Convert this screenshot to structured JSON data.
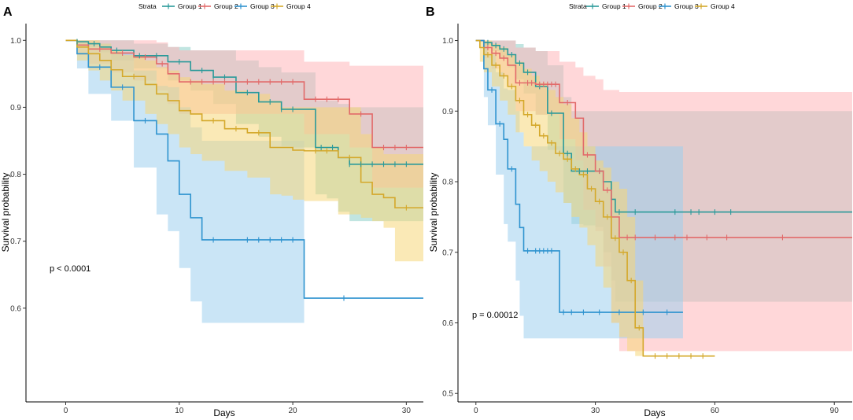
{
  "figure": {
    "legend_title": "Strata",
    "group_names": [
      "Group 1",
      "Group 2",
      "Group 3",
      "Group 4"
    ],
    "colors": [
      "#2A9A9A",
      "#E26A6A",
      "#2E93CF",
      "#D4A82A"
    ],
    "band_colors": [
      "#8ECFC9",
      "#FFB6B9",
      "#9ED0EE",
      "#F5D77A"
    ]
  },
  "chart_data": [
    {
      "type": "line",
      "panel_label": "A",
      "title": "",
      "xlabel": "Days",
      "ylabel": "Survival probability",
      "xlim": [
        -3.5,
        31.5
      ],
      "ylim": [
        0.46,
        1.025
      ],
      "xticks": [
        0,
        10,
        20,
        30
      ],
      "yticks": [
        0.6,
        0.7,
        0.8,
        0.9,
        1.0
      ],
      "ytick_labels": [
        "0.6",
        "0.7",
        "0.8",
        "0.9",
        "1.0"
      ],
      "annotation": "p < 0.0001",
      "series": [
        {
          "name": "Group 1",
          "x": [
            0,
            1,
            2,
            3,
            4,
            6,
            9,
            11,
            13,
            15,
            17,
            19,
            20,
            22,
            23,
            24,
            25,
            26,
            27,
            28,
            29,
            30,
            31.5
          ],
          "y": [
            1.0,
            0.998,
            0.995,
            0.99,
            0.985,
            0.977,
            0.968,
            0.955,
            0.945,
            0.922,
            0.908,
            0.897,
            0.897,
            0.84,
            0.84,
            0.825,
            0.815,
            0.815,
            0.815,
            0.815,
            0.815,
            0.815,
            0.815
          ],
          "lower": [
            1.0,
            0.995,
            0.99,
            0.982,
            0.97,
            0.958,
            0.94,
            0.925,
            0.905,
            0.875,
            0.856,
            0.842,
            0.84,
            0.77,
            0.764,
            0.744,
            0.73,
            0.73,
            0.73,
            0.73,
            0.73,
            0.73,
            0.73
          ],
          "upper": [
            1.0,
            1.0,
            1.0,
            1.0,
            1.0,
            0.995,
            0.99,
            0.985,
            0.985,
            0.97,
            0.96,
            0.952,
            0.952,
            0.91,
            0.91,
            0.905,
            0.9,
            0.9,
            0.9,
            0.9,
            0.9,
            0.9,
            0.9
          ],
          "censor_x": [
            1,
            2.5,
            4.5,
            6.5,
            8,
            10,
            12,
            13,
            14,
            16,
            18,
            19,
            20,
            22.5,
            23.5,
            25,
            26,
            27,
            28,
            29,
            30
          ]
        },
        {
          "name": "Group 2",
          "x": [
            0,
            1,
            2,
            4,
            6,
            8,
            9,
            10,
            15,
            21,
            25,
            27,
            31.5
          ],
          "y": [
            1.0,
            0.993,
            0.987,
            0.981,
            0.975,
            0.965,
            0.95,
            0.938,
            0.938,
            0.912,
            0.89,
            0.84,
            0.84
          ],
          "lower": [
            1.0,
            0.978,
            0.965,
            0.952,
            0.94,
            0.925,
            0.905,
            0.89,
            0.89,
            0.86,
            0.84,
            0.78,
            0.78
          ],
          "upper": [
            1.0,
            1.0,
            1.0,
            1.0,
            1.0,
            0.997,
            0.99,
            0.985,
            0.985,
            0.968,
            0.962,
            0.962,
            0.962
          ],
          "censor_x": [
            3,
            5,
            7,
            8.5,
            11,
            12,
            13,
            14,
            16,
            17,
            18,
            19,
            20,
            22,
            23,
            24,
            26,
            28,
            29,
            30
          ]
        },
        {
          "name": "Group 3",
          "x": [
            0,
            1,
            2,
            4,
            6,
            8,
            9,
            10,
            11,
            12,
            21,
            31.5
          ],
          "y": [
            1.0,
            0.98,
            0.96,
            0.93,
            0.88,
            0.86,
            0.82,
            0.77,
            0.735,
            0.702,
            0.615,
            0.615
          ],
          "lower": [
            1.0,
            0.958,
            0.92,
            0.88,
            0.81,
            0.74,
            0.715,
            0.66,
            0.61,
            0.578,
            0.615,
            0.615
          ],
          "upper": [
            1.0,
            1.0,
            0.995,
            0.982,
            0.955,
            0.932,
            0.93,
            0.9,
            0.87,
            0.85,
            0.615,
            0.615
          ],
          "censor_x": [
            3,
            5,
            7,
            13,
            16,
            17,
            18,
            19,
            20,
            24.5
          ]
        },
        {
          "name": "Group 4",
          "x": [
            0,
            1,
            2,
            3,
            4,
            5,
            7,
            8,
            9,
            10,
            11,
            12,
            14,
            16,
            18,
            19,
            20,
            21,
            24,
            26,
            27,
            28,
            29,
            31.5
          ],
          "y": [
            1.0,
            0.99,
            0.98,
            0.97,
            0.956,
            0.946,
            0.934,
            0.92,
            0.91,
            0.895,
            0.89,
            0.88,
            0.868,
            0.862,
            0.84,
            0.84,
            0.836,
            0.835,
            0.825,
            0.788,
            0.77,
            0.765,
            0.75,
            0.75
          ],
          "lower": [
            1.0,
            0.97,
            0.955,
            0.94,
            0.925,
            0.91,
            0.89,
            0.875,
            0.86,
            0.84,
            0.83,
            0.82,
            0.805,
            0.795,
            0.77,
            0.768,
            0.762,
            0.76,
            0.74,
            0.735,
            0.73,
            0.72,
            0.67,
            0.67
          ],
          "upper": [
            1.0,
            1.0,
            1.0,
            0.995,
            0.985,
            0.978,
            0.97,
            0.96,
            0.955,
            0.945,
            0.94,
            0.935,
            0.925,
            0.92,
            0.91,
            0.9,
            0.9,
            0.9,
            0.9,
            0.86,
            0.84,
            0.83,
            0.83,
            0.83
          ],
          "censor_x": [
            6,
            13,
            15,
            17,
            22,
            23,
            25,
            30
          ]
        }
      ]
    },
    {
      "type": "line",
      "panel_label": "B",
      "title": "",
      "xlabel": "Days",
      "ylabel": "Survival probability",
      "xlim": [
        -4.5,
        94.5
      ],
      "ylim": [
        0.488,
        1.024
      ],
      "xticks": [
        0,
        30,
        60,
        90
      ],
      "yticks": [
        0.5,
        0.6,
        0.7,
        0.8,
        0.9,
        1.0
      ],
      "ytick_labels": [
        "0.5",
        "0.6",
        "0.7",
        "0.8",
        "0.9",
        "1.0"
      ],
      "annotation": "p = 0.00012",
      "series": [
        {
          "name": "Group 1",
          "x": [
            0,
            2,
            4,
            6,
            8,
            10,
            12,
            15,
            18,
            21,
            22,
            24,
            27,
            30,
            32,
            34,
            35,
            94.5
          ],
          "y": [
            1.0,
            0.997,
            0.993,
            0.988,
            0.98,
            0.968,
            0.955,
            0.935,
            0.897,
            0.897,
            0.84,
            0.815,
            0.815,
            0.815,
            0.8,
            0.775,
            0.757,
            0.757
          ],
          "lower": [
            1.0,
            0.993,
            0.985,
            0.975,
            0.962,
            0.945,
            0.925,
            0.895,
            0.845,
            0.84,
            0.77,
            0.74,
            0.738,
            0.736,
            0.7,
            0.66,
            0.63,
            0.63
          ],
          "upper": [
            1.0,
            1.0,
            1.0,
            1.0,
            1.0,
            0.995,
            0.99,
            0.985,
            0.965,
            0.965,
            0.92,
            0.9,
            0.9,
            0.9,
            0.9,
            0.9,
            0.9,
            0.9
          ],
          "censor_x": [
            3,
            5,
            7,
            9,
            11,
            13,
            16,
            19,
            23,
            26,
            28,
            31,
            36,
            40,
            50,
            54,
            56,
            60,
            64
          ]
        },
        {
          "name": "Group 2",
          "x": [
            0,
            2,
            4,
            6,
            8,
            10,
            15,
            21,
            25,
            27,
            30,
            32,
            34,
            36,
            94.5
          ],
          "y": [
            1.0,
            0.99,
            0.982,
            0.975,
            0.965,
            0.94,
            0.938,
            0.912,
            0.89,
            0.838,
            0.815,
            0.788,
            0.75,
            0.721,
            0.721
          ],
          "lower": [
            1.0,
            0.975,
            0.96,
            0.95,
            0.935,
            0.9,
            0.895,
            0.86,
            0.83,
            0.76,
            0.73,
            0.68,
            0.6,
            0.56,
            0.56
          ],
          "upper": [
            1.0,
            1.0,
            1.0,
            1.0,
            1.0,
            0.99,
            0.985,
            0.97,
            0.962,
            0.95,
            0.945,
            0.93,
            0.93,
            0.927,
            0.927
          ],
          "censor_x": [
            3,
            5,
            7,
            11,
            13,
            14,
            16,
            17,
            18,
            19,
            20,
            23,
            28,
            31,
            33,
            38,
            40,
            45,
            50,
            53,
            58,
            63,
            77
          ]
        },
        {
          "name": "Group 3",
          "x": [
            0,
            2,
            3,
            5,
            7,
            8,
            10,
            11,
            12,
            21,
            52
          ],
          "y": [
            1.0,
            0.96,
            0.93,
            0.882,
            0.86,
            0.818,
            0.768,
            0.735,
            0.702,
            0.615,
            0.615
          ],
          "lower": [
            1.0,
            0.92,
            0.88,
            0.81,
            0.74,
            0.715,
            0.66,
            0.61,
            0.578,
            0.578,
            0.578
          ],
          "upper": [
            1.0,
            0.995,
            0.98,
            0.955,
            0.932,
            0.93,
            0.9,
            0.87,
            0.85,
            0.85,
            0.85
          ],
          "censor_x": [
            4,
            6,
            9,
            13,
            15,
            16,
            17,
            18,
            19,
            22,
            24,
            27,
            31,
            36,
            42,
            48
          ]
        },
        {
          "name": "Group 4",
          "x": [
            0,
            1,
            2,
            4,
            6,
            8,
            10,
            12,
            14,
            16,
            18,
            20,
            22,
            24,
            26,
            28,
            30,
            32,
            34,
            36,
            38,
            40,
            42,
            60
          ],
          "y": [
            1.0,
            0.99,
            0.98,
            0.965,
            0.95,
            0.935,
            0.915,
            0.895,
            0.88,
            0.865,
            0.855,
            0.84,
            0.832,
            0.818,
            0.81,
            0.79,
            0.772,
            0.75,
            0.72,
            0.7,
            0.66,
            0.593,
            0.553,
            0.553
          ],
          "lower": [
            1.0,
            0.97,
            0.955,
            0.935,
            0.915,
            0.895,
            0.87,
            0.85,
            0.83,
            0.815,
            0.8,
            0.785,
            0.77,
            0.75,
            0.735,
            0.71,
            0.68,
            0.65,
            0.6,
            0.58,
            0.56,
            0.553,
            0.553,
            0.553
          ],
          "upper": [
            1.0,
            1.0,
            1.0,
            0.995,
            0.99,
            0.98,
            0.97,
            0.96,
            0.95,
            0.94,
            0.93,
            0.92,
            0.91,
            0.89,
            0.87,
            0.85,
            0.83,
            0.82,
            0.8,
            0.79,
            0.75,
            0.66,
            0.553,
            0.553
          ],
          "censor_x": [
            3,
            5,
            7,
            9,
            11,
            13,
            15,
            17,
            19,
            21,
            23,
            25,
            27,
            29,
            31,
            33,
            35,
            37,
            39,
            41,
            45,
            48,
            51,
            54,
            57
          ]
        }
      ]
    }
  ]
}
